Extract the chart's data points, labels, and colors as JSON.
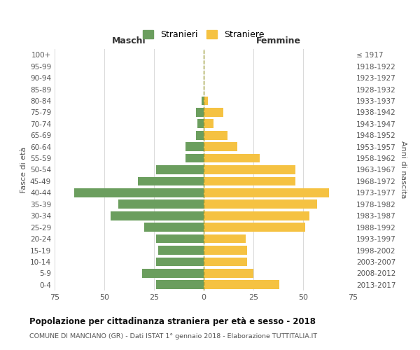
{
  "age_groups": [
    "0-4",
    "5-9",
    "10-14",
    "15-19",
    "20-24",
    "25-29",
    "30-34",
    "35-39",
    "40-44",
    "45-49",
    "50-54",
    "55-59",
    "60-64",
    "65-69",
    "70-74",
    "75-79",
    "80-84",
    "85-89",
    "90-94",
    "95-99",
    "100+"
  ],
  "birth_years": [
    "2013-2017",
    "2008-2012",
    "2003-2007",
    "1998-2002",
    "1993-1997",
    "1988-1992",
    "1983-1987",
    "1978-1982",
    "1973-1977",
    "1968-1972",
    "1963-1967",
    "1958-1962",
    "1953-1957",
    "1948-1952",
    "1943-1947",
    "1938-1942",
    "1933-1937",
    "1928-1932",
    "1923-1927",
    "1918-1922",
    "≤ 1917"
  ],
  "maschi": [
    24,
    31,
    24,
    23,
    24,
    30,
    47,
    43,
    65,
    33,
    24,
    9,
    9,
    4,
    3,
    4,
    1,
    0,
    0,
    0,
    0
  ],
  "femmine": [
    38,
    25,
    22,
    22,
    21,
    51,
    53,
    57,
    63,
    46,
    46,
    28,
    17,
    12,
    5,
    10,
    2,
    0,
    0,
    0,
    0
  ],
  "male_color": "#6b9e5e",
  "female_color": "#f5c242",
  "title": "Popolazione per cittadinanza straniera per età e sesso - 2018",
  "subtitle": "COMUNE DI MANCIANO (GR) - Dati ISTAT 1° gennaio 2018 - Elaborazione TUTTITALIA.IT",
  "xlabel_left": "Maschi",
  "xlabel_right": "Femmine",
  "ylabel_left": "Fasce di età",
  "ylabel_right": "Anni di nascita",
  "legend_male": "Stranieri",
  "legend_female": "Straniere",
  "xlim": 75,
  "background_color": "#ffffff",
  "grid_color": "#d9d9d9"
}
